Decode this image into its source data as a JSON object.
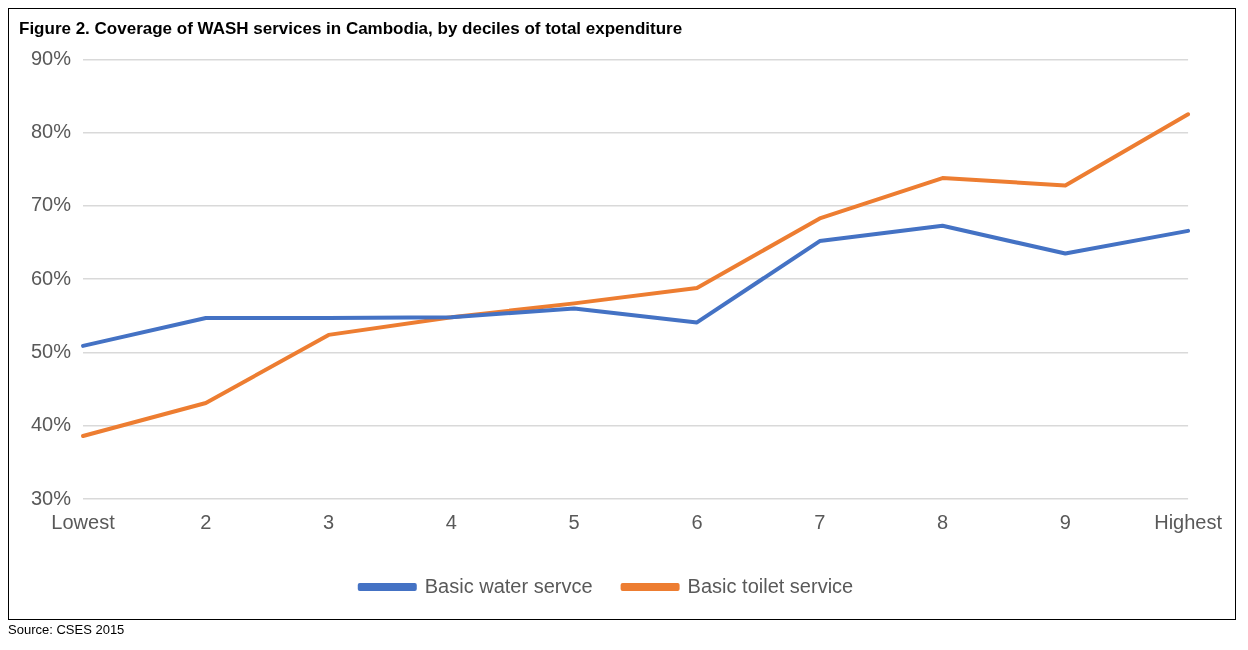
{
  "chart_data": {
    "type": "line",
    "title": "Figure 2. Coverage of WASH services in Cambodia, by deciles of total expenditure",
    "categories": [
      "Lowest",
      "2",
      "3",
      "4",
      "5",
      "6",
      "7",
      "8",
      "9",
      "Highest"
    ],
    "series": [
      {
        "name": "Basic water servce",
        "color": "#4472c4",
        "values": [
          50.9,
          54.7,
          54.7,
          54.8,
          56.0,
          54.1,
          65.2,
          67.3,
          63.5,
          66.6
        ]
      },
      {
        "name": "Basic toilet service",
        "color": "#ed7d31",
        "values": [
          38.6,
          43.1,
          52.4,
          54.8,
          56.7,
          58.8,
          68.3,
          73.8,
          72.8,
          82.5
        ]
      }
    ],
    "ylim": [
      30,
      90
    ],
    "yticks": [
      {
        "value": 30,
        "label": "30%"
      },
      {
        "value": 40,
        "label": "40%"
      },
      {
        "value": 50,
        "label": "50%"
      },
      {
        "value": 60,
        "label": "60%"
      },
      {
        "value": 70,
        "label": "70%"
      },
      {
        "value": 80,
        "label": "80%"
      },
      {
        "value": 90,
        "label": "90%"
      }
    ],
    "grid": "y",
    "legend": "bottom",
    "marker": "none",
    "line_style": "solid",
    "annotations": [
      "Source: CSES 2015"
    ]
  }
}
